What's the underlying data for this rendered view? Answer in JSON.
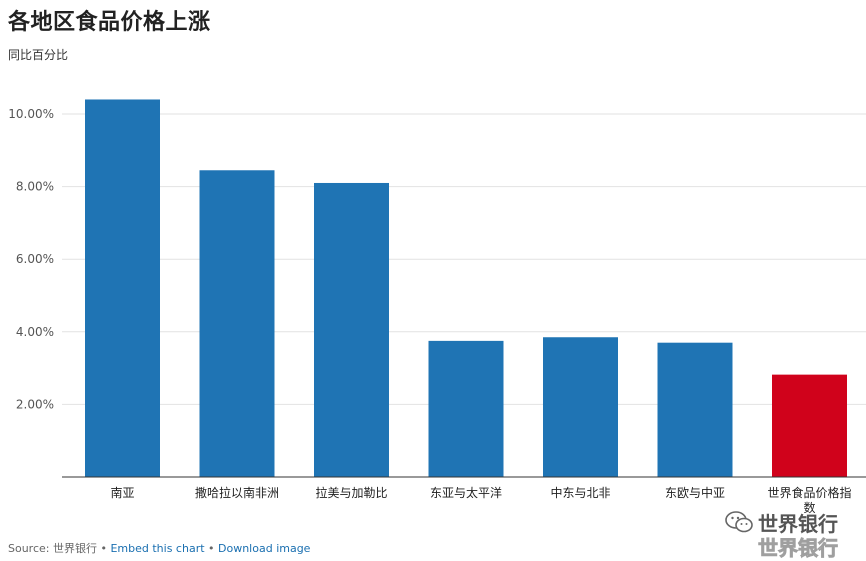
{
  "title": "各地区食品价格上涨",
  "subtitle": "同比百分比",
  "chart_data": {
    "type": "bar",
    "categories": [
      "南亚",
      "撒哈拉以南非洲",
      "拉美与加勒比",
      "东亚与太平洋",
      "中东与北非",
      "东欧与中亚",
      "世界食品价格指数"
    ],
    "values": [
      10.4,
      8.45,
      8.1,
      3.75,
      3.85,
      3.7,
      2.82
    ],
    "bar_colors": [
      "#1f74b4",
      "#1f74b4",
      "#1f74b4",
      "#1f74b4",
      "#1f74b4",
      "#1f74b4",
      "#d0021b"
    ],
    "y_ticks": [
      2,
      4,
      6,
      8,
      10
    ],
    "y_tick_labels": [
      "2.00%",
      "4.00%",
      "6.00%",
      "8.00%",
      "10.00%"
    ],
    "ylim": [
      0,
      11
    ],
    "grid": true
  },
  "footer": {
    "source_prefix": "Source: 世界银行 • ",
    "embed_link": "Embed this chart",
    "separator": " • ",
    "download_link": "Download image"
  },
  "watermark": {
    "text_top": "世界银行",
    "text_bottom": "世界银行"
  }
}
